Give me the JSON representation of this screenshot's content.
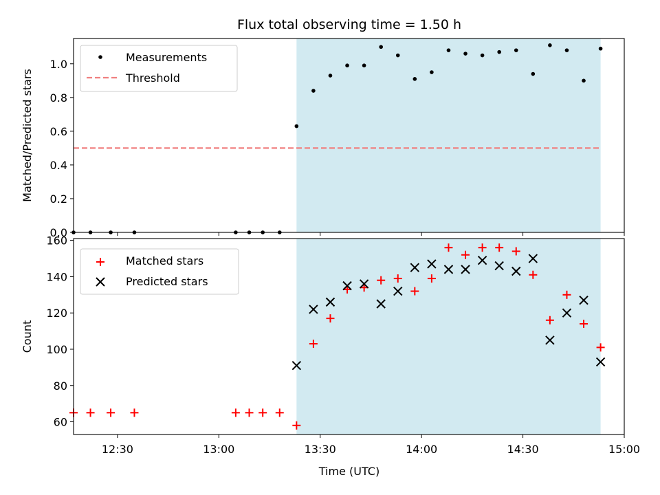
{
  "chart_data": {
    "title": "Flux total observing time = 1.50 h",
    "xlabel": "Time (UTC)",
    "x_ticks": [
      "12:30",
      "13:00",
      "13:30",
      "14:00",
      "14:30",
      "15:00"
    ],
    "xlim": [
      "12:17",
      "15:00"
    ],
    "shaded_span": {
      "start": "13:23",
      "end": "14:53",
      "color": "#add8e6"
    },
    "panels": [
      {
        "type": "scatter",
        "ylabel": "Matched/Predicted stars",
        "ylim": [
          0,
          1.15
        ],
        "y_ticks": [
          0.0,
          0.2,
          0.4,
          0.6,
          0.8,
          1.0
        ],
        "legend_position": "top-left",
        "series": [
          {
            "name": "Measurements",
            "marker": "dot",
            "color": "#000000",
            "x": [
              "12:17",
              "12:22",
              "12:28",
              "12:35",
              "13:05",
              "13:09",
              "13:13",
              "13:18",
              "13:23",
              "13:28",
              "13:33",
              "13:38",
              "13:43",
              "13:48",
              "13:53",
              "13:58",
              "14:03",
              "14:08",
              "14:13",
              "14:18",
              "14:23",
              "14:28",
              "14:33",
              "14:38",
              "14:43",
              "14:48",
              "14:53"
            ],
            "y": [
              0,
              0,
              0,
              0,
              0,
              0,
              0,
              0,
              0.63,
              0.84,
              0.93,
              0.99,
              0.99,
              1.1,
              1.05,
              0.91,
              0.95,
              1.08,
              1.06,
              1.05,
              1.07,
              1.08,
              0.94,
              1.11,
              1.08,
              0.9,
              1.09
            ]
          },
          {
            "name": "Threshold",
            "type": "line",
            "style": "dashed",
            "color": "#f08080",
            "x": [
              "12:17",
              "14:53"
            ],
            "y": [
              0.5,
              0.5
            ]
          }
        ]
      },
      {
        "type": "scatter",
        "ylabel": "Count",
        "ylim": [
          53,
          161
        ],
        "y_ticks": [
          60,
          80,
          100,
          120,
          140,
          160
        ],
        "legend_position": "top-left",
        "series": [
          {
            "name": "Matched stars",
            "marker": "plus",
            "color": "#ff0000",
            "x": [
              "12:17",
              "12:22",
              "12:28",
              "12:35",
              "13:05",
              "13:09",
              "13:13",
              "13:18",
              "13:23",
              "13:28",
              "13:33",
              "13:38",
              "13:43",
              "13:48",
              "13:53",
              "13:58",
              "14:03",
              "14:08",
              "14:13",
              "14:18",
              "14:23",
              "14:28",
              "14:33",
              "14:38",
              "14:43",
              "14:48",
              "14:53"
            ],
            "y": [
              65,
              65,
              65,
              65,
              65,
              65,
              65,
              65,
              58,
              103,
              117,
              133,
              134,
              138,
              139,
              132,
              139,
              156,
              152,
              156,
              156,
              154,
              141,
              116,
              130,
              114,
              101
            ]
          },
          {
            "name": "Predicted stars",
            "marker": "x",
            "color": "#000000",
            "x": [
              "13:23",
              "13:28",
              "13:33",
              "13:38",
              "13:43",
              "13:48",
              "13:53",
              "13:58",
              "14:03",
              "14:08",
              "14:13",
              "14:18",
              "14:23",
              "14:28",
              "14:33",
              "14:38",
              "14:43",
              "14:48",
              "14:53"
            ],
            "y": [
              91,
              122,
              126,
              135,
              136,
              125,
              132,
              145,
              147,
              144,
              144,
              149,
              146,
              143,
              150,
              105,
              120,
              127,
              93
            ]
          }
        ]
      }
    ]
  }
}
